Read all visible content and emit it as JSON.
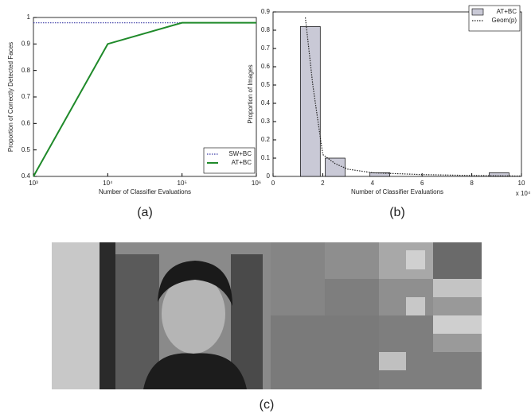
{
  "chart_data": [
    {
      "type": "line",
      "caption": "(a)",
      "xlabel": "Number of Classifier Evaluations",
      "ylabel": "Proportion of Correctly Detected Faces",
      "xscale": "log",
      "xlim": [
        1000,
        1000000
      ],
      "xticks": [
        {
          "value": 1000,
          "label": "10³"
        },
        {
          "value": 10000,
          "label": "10⁴"
        },
        {
          "value": 100000,
          "label": "10⁵"
        },
        {
          "value": 1000000,
          "label": "10⁶"
        }
      ],
      "ylim": [
        0.4,
        1
      ],
      "yticks": [
        0.4,
        0.5,
        0.6,
        0.7,
        0.8,
        0.9,
        1
      ],
      "legend": "lower right",
      "series": [
        {
          "name": "SW+BC",
          "type": "line",
          "style": "dotted",
          "color": "#3b3ba6",
          "x": [
            1000,
            1000000
          ],
          "values": [
            0.98,
            0.98
          ]
        },
        {
          "name": "AT+BC",
          "type": "line",
          "style": "solid",
          "color": "#1f8a2a",
          "x": [
            1000,
            10000,
            100000,
            1000000
          ],
          "values": [
            0.4,
            0.9,
            0.98,
            0.98
          ]
        }
      ]
    },
    {
      "type": "bar",
      "caption": "(b)",
      "xlabel": "Number of Classifier Evaluations",
      "ylabel": "Proportion of Images",
      "x_multiplier": "x 10⁴",
      "xlim": [
        0,
        10
      ],
      "xticks": [
        0,
        2,
        4,
        6,
        8,
        10
      ],
      "ylim": [
        0,
        0.9
      ],
      "yticks": [
        0,
        0.1,
        0.2,
        0.3,
        0.4,
        0.5,
        0.6,
        0.7,
        0.8,
        0.9
      ],
      "legend": "upper right",
      "series": [
        {
          "name": "AT+BC",
          "type": "bar",
          "color": "#c9c9d6",
          "x": [
            1.5,
            2.5,
            4.3,
            9.1
          ],
          "values": [
            0.82,
            0.1,
            0.02,
            0.02
          ]
        },
        {
          "name": "Geom(p)",
          "type": "line",
          "style": "dotted",
          "color": "#222222",
          "x": [
            1.3,
            1.6,
            2,
            2.5,
            3,
            4,
            6,
            8,
            10
          ],
          "values": [
            0.87,
            0.5,
            0.12,
            0.07,
            0.04,
            0.02,
            0.01,
            0.005,
            0.002
          ]
        }
      ]
    }
  ],
  "panel_c": {
    "caption": "(c)"
  }
}
